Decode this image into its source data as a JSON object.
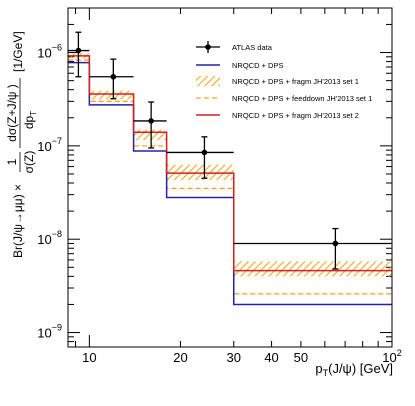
{
  "chart_data": {
    "type": "line",
    "xlabel_main": "p",
    "xlabel_sub": "T",
    "xlabel_rest": "(J/ψ) [GeV]",
    "ylabel_left": "Br(J/ψ→μμ) ×",
    "ylabel_frac_num": "1",
    "ylabel_frac_den": "σ(Z)",
    "ylabel_deriv_num": "dσ(Z+J/ψ )",
    "ylabel_deriv_den": "dp",
    "ylabel_deriv_den_sub": "T",
    "ylabel_unit": "[1/GeV]",
    "xscale": "log",
    "yscale": "log",
    "xlim": [
      8.5,
      100
    ],
    "ylim": [
      7e-10,
      3e-06
    ],
    "grid": false,
    "legend_placement": "top-right",
    "x_ticklabels": [
      {
        "value": 10,
        "label": "10"
      },
      {
        "value": 20,
        "label": "20"
      },
      {
        "value": 30,
        "label": "30"
      },
      {
        "value": 40,
        "label": "40"
      },
      {
        "value": 50,
        "label": "50"
      },
      {
        "value": 100,
        "label": "10",
        "sup": "2"
      }
    ],
    "y_ticklabels": [
      {
        "value": 1e-09,
        "label": "10",
        "sup": "−9"
      },
      {
        "value": 1e-08,
        "label": "10",
        "sup": "−8"
      },
      {
        "value": 1e-07,
        "label": "10",
        "sup": "−7"
      },
      {
        "value": 1e-06,
        "label": "10",
        "sup": "−6"
      }
    ],
    "bin_edges": [
      8.5,
      10,
      14,
      18,
      30,
      100
    ],
    "data": {
      "name": "ATLAS data",
      "color": "#000000",
      "x": [
        9.2,
        12.0,
        16.0,
        24.0,
        65.0
      ],
      "x_low": [
        8.5,
        10,
        14,
        18,
        30
      ],
      "x_high": [
        10,
        14,
        18,
        30,
        100
      ],
      "y": [
        1.05e-06,
        5.5e-07,
        1.85e-07,
        8.5e-08,
        9e-09
      ],
      "y_err_low": [
        5e-07,
        2.3e-07,
        9e-08,
        4e-08,
        4.2e-09
      ],
      "y_err_high": [
        6e-07,
        3e-07,
        1.1e-07,
        4e-08,
        4e-09
      ]
    },
    "series": [
      {
        "name": "NRQCD + DPS",
        "color": "#2222aa",
        "style": "solid",
        "values": [
          7.8e-07,
          2.75e-07,
          8.8e-08,
          2.8e-08,
          2e-09
        ]
      },
      {
        "name": "NRQCD + DPS + fragm JH'2013 set 1",
        "color": "#f5a623",
        "style": "hatched-band",
        "band_low": [
          8.6e-07,
          3.15e-07,
          1.15e-07,
          4.3e-08,
          4e-09
        ],
        "band_high": [
          9.8e-07,
          3.9e-07,
          1.5e-07,
          6.3e-08,
          5.8e-09
        ]
      },
      {
        "name": "NRQCD + DPS + feeddown JH'2013 set 1",
        "color": "#f5a623",
        "style": "dashed",
        "values": [
          8.3e-07,
          3e-07,
          1e-07,
          3.5e-08,
          2.6e-09
        ]
      },
      {
        "name": "NRQCD + DPS + fragm JH'2013 set 2",
        "color": "#d42020",
        "style": "solid",
        "values": [
          9.2e-07,
          3.6e-07,
          1.4e-07,
          5.1e-08,
          4.6e-09
        ]
      }
    ]
  }
}
